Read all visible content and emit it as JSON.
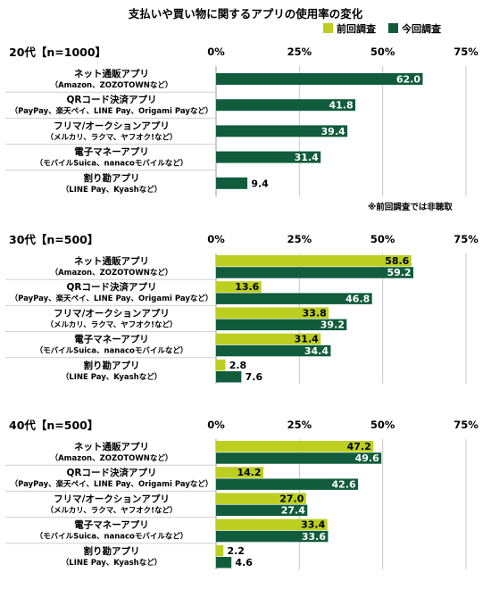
{
  "title": "支払いや買い物に関するアプリの使用率の変化",
  "legend": [
    {
      "label": "前回調査",
      "color": "#bccf20"
    },
    {
      "label": "今回調査",
      "color": "#115c3c"
    }
  ],
  "note": "※前回調査では非聴取",
  "chart_data": [
    {
      "type": "bar",
      "orientation": "horizontal",
      "panel_label": "20代【n=1000】",
      "axis_ticks": [
        "0%",
        "25%",
        "50%",
        "75%"
      ],
      "xlim": [
        0,
        75
      ],
      "categories": [
        {
          "name": "ネット通販アプリ",
          "sub": "（Amazon、ZOZOTOWNなど）"
        },
        {
          "name": "QRコード決済アプリ",
          "sub": "（PayPay、楽天ペイ、LINE Pay、Origami Payなど）"
        },
        {
          "name": "フリマ/オークションアプリ",
          "sub": "（メルカリ、ラクマ、ヤフオク!など）"
        },
        {
          "name": "電子マネーアプリ",
          "sub": "（モバイルSuica、nanacoモバイルなど）"
        },
        {
          "name": "割り勘アプリ",
          "sub": "（LINE Pay、Kyashなど）"
        }
      ],
      "series": [
        {
          "name": "今回調査",
          "values": [
            62.0,
            41.8,
            39.4,
            31.4,
            9.4
          ],
          "labels": [
            "62.0",
            "41.8",
            "39.4",
            "31.4",
            "9.4"
          ]
        }
      ]
    },
    {
      "type": "bar",
      "orientation": "horizontal",
      "panel_label": "30代【n=500】",
      "axis_ticks": [
        "0%",
        "25%",
        "50%",
        "75%"
      ],
      "xlim": [
        0,
        75
      ],
      "categories": [
        {
          "name": "ネット通販アプリ",
          "sub": "（Amazon、ZOZOTOWNなど）"
        },
        {
          "name": "QRコード決済アプリ",
          "sub": "（PayPay、楽天ペイ、LINE Pay、Origami Payなど）"
        },
        {
          "name": "フリマ/オークションアプリ",
          "sub": "（メルカリ、ラクマ、ヤフオク!など）"
        },
        {
          "name": "電子マネーアプリ",
          "sub": "（モバイルSuica、nanacoモバイルなど）"
        },
        {
          "name": "割り勘アプリ",
          "sub": "（LINE Pay、Kyashなど）"
        }
      ],
      "series": [
        {
          "name": "前回調査",
          "values": [
            58.6,
            13.6,
            33.8,
            31.4,
            2.8
          ],
          "labels": [
            "58.6",
            "13.6",
            "33.8",
            "31.4",
            "2.8"
          ]
        },
        {
          "name": "今回調査",
          "values": [
            59.2,
            46.8,
            39.2,
            34.4,
            7.6
          ],
          "labels": [
            "59.2",
            "46.8",
            "39.2",
            "34.4",
            "7.6"
          ]
        }
      ]
    },
    {
      "type": "bar",
      "orientation": "horizontal",
      "panel_label": "40代【n=500】",
      "axis_ticks": [
        "0%",
        "25%",
        "50%",
        "75%"
      ],
      "xlim": [
        0,
        75
      ],
      "categories": [
        {
          "name": "ネット通販アプリ",
          "sub": "（Amazon、ZOZOTOWNなど）"
        },
        {
          "name": "QRコード決済アプリ",
          "sub": "（PayPay、楽天ペイ、LINE Pay、Origami Payなど）"
        },
        {
          "name": "フリマ/オークションアプリ",
          "sub": "（メルカリ、ラクマ、ヤフオク!など）"
        },
        {
          "name": "電子マネーアプリ",
          "sub": "（モバイルSuica、nanacoモバイルなど）"
        },
        {
          "name": "割り勘アプリ",
          "sub": "（LINE Pay、Kyashなど）"
        }
      ],
      "series": [
        {
          "name": "前回調査",
          "values": [
            47.2,
            14.2,
            27.0,
            33.4,
            2.2
          ],
          "labels": [
            "47.2",
            "14.2",
            "27.0",
            "33.4",
            "2.2"
          ]
        },
        {
          "name": "今回調査",
          "values": [
            49.6,
            42.6,
            27.4,
            33.6,
            4.6
          ],
          "labels": [
            "49.6",
            "42.6",
            "27.4",
            "33.6",
            "4.6"
          ]
        }
      ]
    }
  ]
}
